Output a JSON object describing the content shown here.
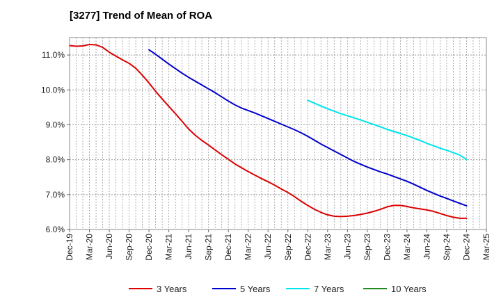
{
  "chart_data": {
    "type": "line",
    "title": "[3277]  Trend of Mean of ROA",
    "xlabel": "",
    "ylabel": "",
    "x_ticks": [
      "Dec-19",
      "Mar-20",
      "Jun-20",
      "Sep-20",
      "Dec-20",
      "Mar-21",
      "Jun-21",
      "Sep-21",
      "Dec-21",
      "Mar-22",
      "Jun-22",
      "Sep-22",
      "Dec-22",
      "Mar-23",
      "Jun-23",
      "Sep-23",
      "Dec-23",
      "Mar-24",
      "Jun-24",
      "Sep-24",
      "Dec-24",
      "Mar-25"
    ],
    "y_ticks": [
      "6.0%",
      "7.0%",
      "8.0%",
      "9.0%",
      "10.0%",
      "11.0%"
    ],
    "ylim": [
      6.0,
      11.5
    ],
    "grid": true,
    "legend_position": "bottom",
    "series": [
      {
        "name": "3 Years",
        "color": "#dd0000",
        "x": [
          "Dec-19",
          "Jan-20",
          "Feb-20",
          "Mar-20",
          "Apr-20",
          "May-20",
          "Jun-20",
          "Jul-20",
          "Aug-20",
          "Sep-20",
          "Oct-20",
          "Nov-20",
          "Dec-20",
          "Jan-21",
          "Feb-21",
          "Mar-21",
          "Apr-21",
          "May-21",
          "Jun-21",
          "Jul-21",
          "Aug-21",
          "Sep-21",
          "Oct-21",
          "Nov-21",
          "Dec-21",
          "Jan-22",
          "Feb-22",
          "Mar-22",
          "Apr-22",
          "May-22",
          "Jun-22",
          "Jul-22",
          "Aug-22",
          "Sep-22",
          "Oct-22",
          "Nov-22",
          "Dec-22",
          "Jan-23",
          "Feb-23",
          "Mar-23",
          "Apr-23",
          "May-23",
          "Jun-23",
          "Jul-23",
          "Aug-23",
          "Sep-23",
          "Oct-23",
          "Nov-23",
          "Dec-23",
          "Jan-24",
          "Feb-24",
          "Mar-24",
          "Apr-24",
          "May-24",
          "Jun-24",
          "Jul-24",
          "Aug-24",
          "Sep-24",
          "Oct-24",
          "Nov-24",
          "Dec-24"
        ],
        "values": [
          11.27,
          11.25,
          11.26,
          11.3,
          11.29,
          11.22,
          11.08,
          10.97,
          10.86,
          10.76,
          10.62,
          10.42,
          10.2,
          9.96,
          9.74,
          9.53,
          9.32,
          9.1,
          8.88,
          8.7,
          8.55,
          8.42,
          8.28,
          8.14,
          8.01,
          7.88,
          7.77,
          7.66,
          7.56,
          7.46,
          7.37,
          7.27,
          7.16,
          7.06,
          6.94,
          6.81,
          6.69,
          6.58,
          6.49,
          6.42,
          6.38,
          6.37,
          6.38,
          6.4,
          6.43,
          6.47,
          6.52,
          6.58,
          6.65,
          6.69,
          6.69,
          6.66,
          6.62,
          6.59,
          6.56,
          6.52,
          6.46,
          6.4,
          6.35,
          6.32,
          6.32
        ]
      },
      {
        "name": "5 Years",
        "color": "#0000cc",
        "x": [
          "Dec-20",
          "Jan-21",
          "Feb-21",
          "Mar-21",
          "Apr-21",
          "May-21",
          "Jun-21",
          "Jul-21",
          "Aug-21",
          "Sep-21",
          "Oct-21",
          "Nov-21",
          "Dec-21",
          "Jan-22",
          "Feb-22",
          "Mar-22",
          "Apr-22",
          "May-22",
          "Jun-22",
          "Jul-22",
          "Aug-22",
          "Sep-22",
          "Oct-22",
          "Nov-22",
          "Dec-22",
          "Jan-23",
          "Feb-23",
          "Mar-23",
          "Apr-23",
          "May-23",
          "Jun-23",
          "Jul-23",
          "Aug-23",
          "Sep-23",
          "Oct-23",
          "Nov-23",
          "Dec-23",
          "Jan-24",
          "Feb-24",
          "Mar-24",
          "Apr-24",
          "May-24",
          "Jun-24",
          "Jul-24",
          "Aug-24",
          "Sep-24",
          "Oct-24",
          "Nov-24",
          "Dec-24"
        ],
        "values": [
          11.15,
          11.02,
          10.88,
          10.74,
          10.61,
          10.48,
          10.36,
          10.25,
          10.14,
          10.03,
          9.92,
          9.8,
          9.68,
          9.57,
          9.48,
          9.41,
          9.34,
          9.26,
          9.18,
          9.1,
          9.02,
          8.94,
          8.86,
          8.77,
          8.67,
          8.56,
          8.45,
          8.35,
          8.25,
          8.15,
          8.05,
          7.95,
          7.87,
          7.79,
          7.72,
          7.65,
          7.59,
          7.52,
          7.45,
          7.38,
          7.3,
          7.21,
          7.12,
          7.04,
          6.96,
          6.89,
          6.82,
          6.75,
          6.68
        ]
      },
      {
        "name": "7 Years",
        "color": "#00e5ee",
        "x": [
          "Dec-22",
          "Jan-23",
          "Feb-23",
          "Mar-23",
          "Apr-23",
          "May-23",
          "Jun-23",
          "Jul-23",
          "Aug-23",
          "Sep-23",
          "Oct-23",
          "Nov-23",
          "Dec-23",
          "Jan-24",
          "Feb-24",
          "Mar-24",
          "Apr-24",
          "May-24",
          "Jun-24",
          "Jul-24",
          "Aug-24",
          "Sep-24",
          "Oct-24",
          "Nov-24",
          "Dec-24"
        ],
        "values": [
          9.7,
          9.62,
          9.54,
          9.46,
          9.39,
          9.32,
          9.26,
          9.2,
          9.14,
          9.07,
          9.01,
          8.94,
          8.87,
          8.81,
          8.75,
          8.69,
          8.62,
          8.55,
          8.47,
          8.4,
          8.33,
          8.27,
          8.2,
          8.13,
          8.0
        ]
      },
      {
        "name": "10 Years",
        "color": "#228b22",
        "x": [],
        "values": []
      }
    ]
  }
}
